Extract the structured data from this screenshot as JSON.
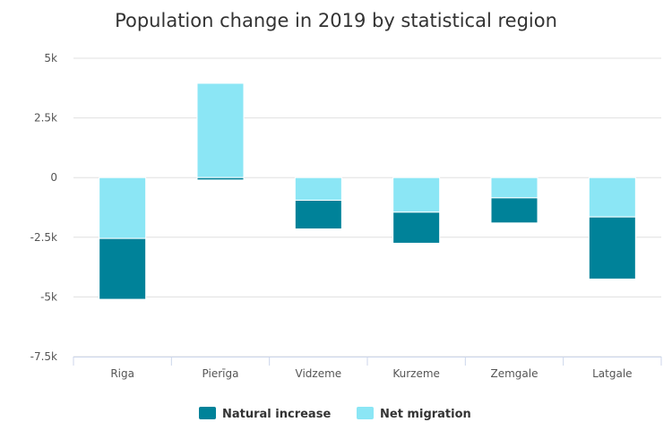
{
  "chart_data": {
    "type": "bar",
    "stacked": true,
    "title": "Population change in 2019 by statistical region",
    "xlabel": "",
    "ylabel": "",
    "categories": [
      "Riga",
      "Pierīga",
      "Vidzeme",
      "Kurzeme",
      "Zemgale",
      "Latgale"
    ],
    "series": [
      {
        "name": "Natural increase",
        "color": "#008299",
        "values": [
          -2550,
          -100,
          -1200,
          -1300,
          -1050,
          -2600
        ]
      },
      {
        "name": "Net migration",
        "color": "#8be6f5",
        "values": [
          -2550,
          3950,
          -950,
          -1450,
          -850,
          -1650
        ]
      }
    ],
    "ylim": [
      -7500,
      5000
    ],
    "yticks": [
      5000,
      2500,
      0,
      -2500,
      -5000,
      -7500
    ],
    "ytick_labels": [
      "5k",
      "2.5k",
      "0",
      "-2.5k",
      "-5k",
      "-7.5k"
    ],
    "grid": true,
    "legend": "bottom-center"
  }
}
